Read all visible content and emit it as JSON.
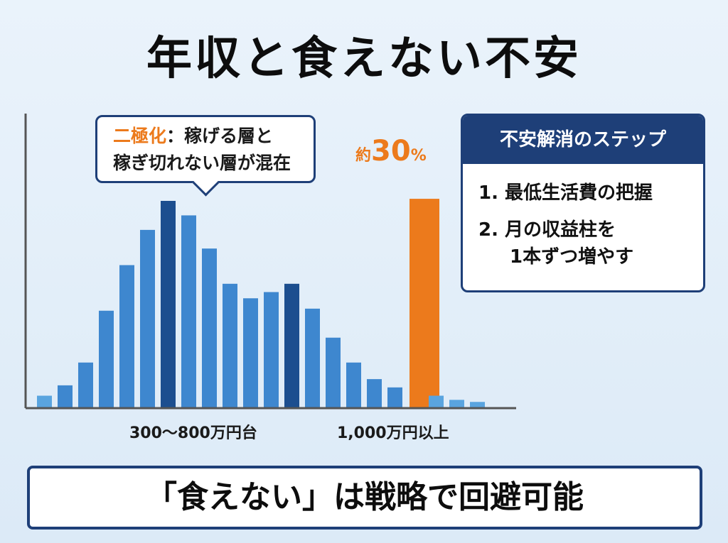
{
  "title": "年収と食えない不安",
  "callout": {
    "accent": "二極化",
    "line1_rest": "：稼げる層と",
    "line2": "稼ぎ切れない層が混在"
  },
  "pct_label": {
    "pre": "約",
    "num": "30",
    "unit": "%"
  },
  "x_tick_labels": {
    "mid": "300～800万円台",
    "high": "1,000万円以上"
  },
  "steps_box": {
    "header": "不安解消のステップ",
    "step1": "1. 最低生活費の把握",
    "step2_line1": "2. 月の収益柱を",
    "step2_line2": "1本ずつ増やす"
  },
  "banner": "「食えない」は戦略で回避可能",
  "colors": {
    "bar_light": "#3e87cf",
    "bar_pale": "#5aa4df",
    "bar_dark": "#1c4e8f",
    "bar_highlight": "#ec7a1c",
    "navy": "#1e3f78",
    "axis": "#555555"
  },
  "chart_data": {
    "type": "bar",
    "title": "",
    "xlabel": "",
    "ylabel": "",
    "ylim": [
      0,
      100
    ],
    "values": [
      6,
      11,
      22,
      47,
      69,
      86,
      100,
      93,
      77,
      60,
      53,
      56,
      60,
      48,
      34,
      22,
      14,
      10,
      101,
      6,
      4,
      3
    ],
    "emphasis": [
      "pale",
      "light",
      "light",
      "light",
      "light",
      "light",
      "dark",
      "light",
      "light",
      "light",
      "light",
      "light",
      "dark",
      "light",
      "light",
      "light",
      "light",
      "light",
      "highlight",
      "pale",
      "pale",
      "pale"
    ],
    "tick_labels": [
      "300～800万円台",
      "1,000万円以上"
    ],
    "annotations": [
      "二極化：稼げる層と稼ぎ切れない層が混在",
      "約30%"
    ]
  }
}
